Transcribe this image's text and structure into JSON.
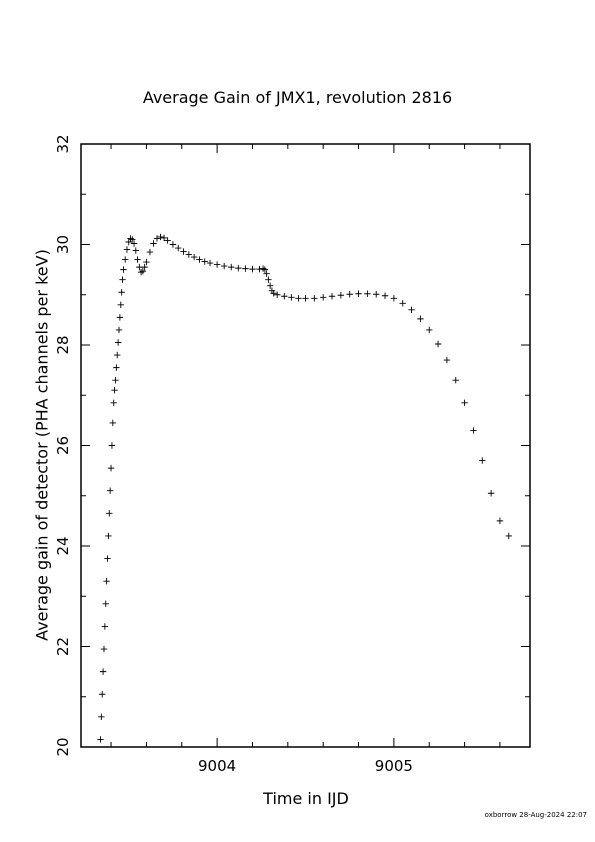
{
  "chart_data": {
    "type": "scatter",
    "title": "Average Gain of JMX1, revolution 2816",
    "xlabel": "Time in IJD",
    "ylabel": "Average gain of detector (PHA channels per keV)",
    "xlim": [
      9003.23,
      9005.77
    ],
    "ylim": [
      20,
      32
    ],
    "xticks": [
      9004,
      9005
    ],
    "yticks": [
      20,
      22,
      24,
      26,
      28,
      30,
      32
    ],
    "grid": false,
    "legend": "none",
    "marker": "+",
    "color": "#000000",
    "series": [
      {
        "points": [
          [
            9003.34,
            20.15
          ],
          [
            9003.345,
            20.6
          ],
          [
            9003.35,
            21.05
          ],
          [
            9003.355,
            21.5
          ],
          [
            9003.36,
            21.95
          ],
          [
            9003.365,
            22.4
          ],
          [
            9003.37,
            22.85
          ],
          [
            9003.375,
            23.3
          ],
          [
            9003.38,
            23.75
          ],
          [
            9003.385,
            24.2
          ],
          [
            9003.39,
            24.65
          ],
          [
            9003.395,
            25.1
          ],
          [
            9003.4,
            25.55
          ],
          [
            9003.405,
            26.0
          ],
          [
            9003.41,
            26.45
          ],
          [
            9003.415,
            26.85
          ],
          [
            9003.42,
            27.1
          ],
          [
            9003.425,
            27.3
          ],
          [
            9003.43,
            27.55
          ],
          [
            9003.435,
            27.8
          ],
          [
            9003.44,
            28.05
          ],
          [
            9003.445,
            28.3
          ],
          [
            9003.45,
            28.55
          ],
          [
            9003.455,
            28.8
          ],
          [
            9003.46,
            29.05
          ],
          [
            9003.465,
            29.3
          ],
          [
            9003.47,
            29.5
          ],
          [
            9003.48,
            29.7
          ],
          [
            9003.49,
            29.9
          ],
          [
            9003.5,
            30.05
          ],
          [
            9003.51,
            30.12
          ],
          [
            9003.52,
            30.1
          ],
          [
            9003.53,
            30.02
          ],
          [
            9003.54,
            29.88
          ],
          [
            9003.55,
            29.7
          ],
          [
            9003.56,
            29.55
          ],
          [
            9003.57,
            29.45
          ],
          [
            9003.58,
            29.47
          ],
          [
            9003.59,
            29.55
          ],
          [
            9003.6,
            29.65
          ],
          [
            9003.62,
            29.85
          ],
          [
            9003.64,
            30.02
          ],
          [
            9003.66,
            30.12
          ],
          [
            9003.68,
            30.15
          ],
          [
            9003.7,
            30.13
          ],
          [
            9003.72,
            30.08
          ],
          [
            9003.75,
            30.0
          ],
          [
            9003.78,
            29.93
          ],
          [
            9003.81,
            29.86
          ],
          [
            9003.84,
            29.8
          ],
          [
            9003.87,
            29.75
          ],
          [
            9003.9,
            29.7
          ],
          [
            9003.93,
            29.66
          ],
          [
            9003.96,
            29.63
          ],
          [
            9004.0,
            29.6
          ],
          [
            9004.04,
            29.57
          ],
          [
            9004.08,
            29.55
          ],
          [
            9004.12,
            29.53
          ],
          [
            9004.16,
            29.52
          ],
          [
            9004.2,
            29.51
          ],
          [
            9004.24,
            29.51
          ],
          [
            9004.26,
            29.52
          ],
          [
            9004.27,
            29.5
          ],
          [
            9004.28,
            29.42
          ],
          [
            9004.29,
            29.3
          ],
          [
            9004.3,
            29.18
          ],
          [
            9004.31,
            29.08
          ],
          [
            9004.32,
            29.03
          ],
          [
            9004.34,
            29.0
          ],
          [
            9004.38,
            28.97
          ],
          [
            9004.42,
            28.95
          ],
          [
            9004.46,
            28.93
          ],
          [
            9004.5,
            28.93
          ],
          [
            9004.55,
            28.93
          ],
          [
            9004.6,
            28.95
          ],
          [
            9004.65,
            28.97
          ],
          [
            9004.7,
            28.99
          ],
          [
            9004.75,
            29.01
          ],
          [
            9004.8,
            29.02
          ],
          [
            9004.85,
            29.02
          ],
          [
            9004.9,
            29.01
          ],
          [
            9004.95,
            28.98
          ],
          [
            9005.0,
            28.93
          ],
          [
            9005.05,
            28.83
          ],
          [
            9005.1,
            28.7
          ],
          [
            9005.15,
            28.52
          ],
          [
            9005.2,
            28.3
          ],
          [
            9005.25,
            28.02
          ],
          [
            9005.3,
            27.7
          ],
          [
            9005.35,
            27.3
          ],
          [
            9005.4,
            26.85
          ],
          [
            9005.45,
            26.3
          ],
          [
            9005.5,
            25.7
          ],
          [
            9005.55,
            25.05
          ],
          [
            9005.6,
            24.5
          ],
          [
            9005.65,
            24.2
          ]
        ]
      }
    ]
  },
  "footer": {
    "credit": "oxborrow 28-Aug-2024 22:07"
  }
}
